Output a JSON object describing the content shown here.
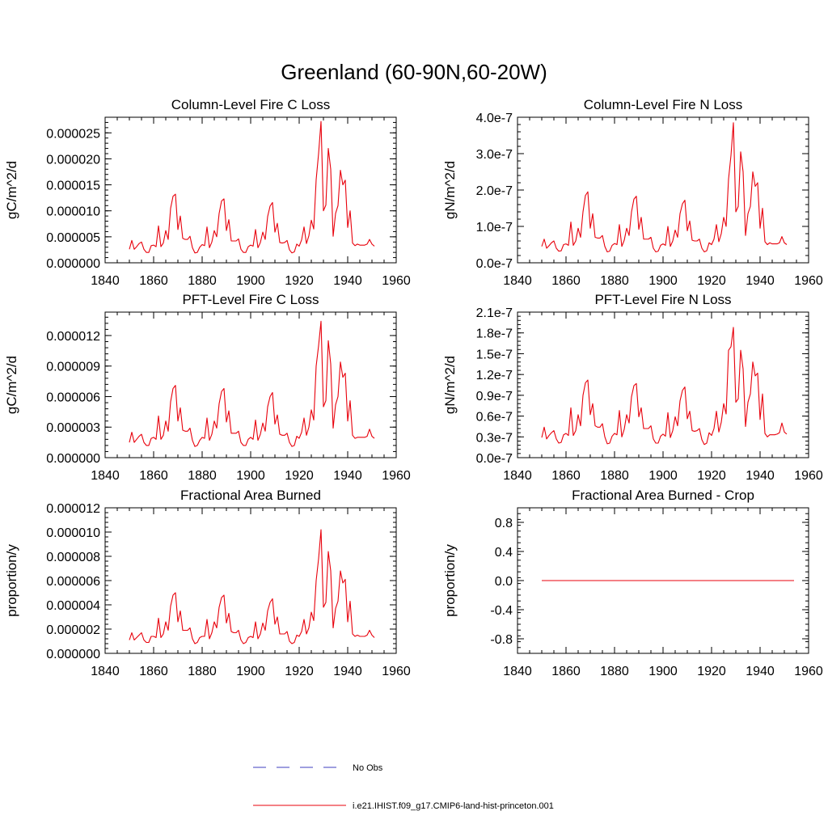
{
  "figure": {
    "title": "Greenland (60-90N,60-20W)"
  },
  "legend": {
    "items": [
      {
        "label": "No Obs",
        "color": "#3f3fbf",
        "dashed": true
      },
      {
        "label": "i.e21.IHIST.f09_g17.CMIP6-land-hist-princeton.001",
        "color": "#e8000b",
        "dashed": false
      }
    ]
  },
  "colors": {
    "series": "#e8000b",
    "axis": "#000000",
    "background": "#ffffff"
  },
  "chart_data": [
    {
      "type": "line",
      "title": "Column-Level Fire C Loss",
      "ylabel": "gC/m^2/d",
      "xlabel": "",
      "xlim": [
        1840,
        1960
      ],
      "ylim": [
        0,
        2.8e-05
      ],
      "xticks": [
        1840,
        1860,
        1880,
        1900,
        1920,
        1940,
        1960
      ],
      "xtick_labels": [
        "1840",
        "1860",
        "1880",
        "1900",
        "1920",
        "1940",
        "1960"
      ],
      "yticks": [
        0,
        5e-06,
        1e-05,
        1.5e-05,
        2e-05,
        2.5e-05
      ],
      "ytick_labels": [
        "0.000000",
        "0.000005",
        "0.000010",
        "0.000015",
        "0.000020",
        "0.000025"
      ],
      "x_start": 1850,
      "x_step": 1,
      "series": [
        {
          "color": "#e8000b",
          "values": [
            2.6e-06,
            4.3e-06,
            2.6e-06,
            3.1e-06,
            3.7e-06,
            4e-06,
            2.6e-06,
            2e-06,
            2e-06,
            3.3e-06,
            3.4e-06,
            3.1e-06,
            7.1e-06,
            3.1e-06,
            3.8e-06,
            6.2e-06,
            4.5e-06,
            1.05e-05,
            1.28e-05,
            1.32e-05,
            6.4e-06,
            9e-06,
            4.7e-06,
            4.5e-06,
            4.5e-06,
            5.1e-06,
            2.9e-06,
            1.9e-06,
            2e-06,
            3e-06,
            3.5e-06,
            3.3e-06,
            6.9e-06,
            2.9e-06,
            4e-06,
            6.2e-06,
            5e-06,
            9.5e-06,
            1.19e-05,
            1.23e-05,
            6.2e-06,
            8.3e-06,
            4.2e-06,
            4.2e-06,
            4.2e-06,
            4.6e-06,
            2.6e-06,
            2e-06,
            2e-06,
            3.1e-06,
            3.4e-06,
            3.2e-06,
            6.4e-06,
            2.9e-06,
            3.9e-06,
            5.9e-06,
            4.5e-06,
            8.9e-06,
            1.09e-05,
            1.16e-05,
            5.9e-06,
            7.6e-06,
            3.9e-06,
            3.8e-06,
            3.9e-06,
            4.3e-06,
            2.5e-06,
            1.9e-06,
            2.1e-06,
            3.6e-06,
            3.2e-06,
            4.4e-06,
            6.9e-06,
            3.7e-06,
            5.2e-06,
            8.2e-06,
            6.5e-06,
            1.6e-05,
            2.1e-05,
            2.72e-05,
            1e-05,
            1.11e-05,
            2.2e-05,
            1.8e-05,
            5.1e-06,
            9.5e-06,
            1.1e-05,
            1.78e-05,
            1.5e-05,
            1.59e-05,
            6.8e-06,
            1e-05,
            3.8e-06,
            3.3e-06,
            3.6e-06,
            3.4e-06,
            3.4e-06,
            3.4e-06,
            3.6e-06,
            4.5e-06,
            3.6e-06,
            3.2e-06
          ]
        }
      ]
    },
    {
      "type": "line",
      "title": "Column-Level Fire N Loss",
      "ylabel": "gN/m^2/d",
      "xlabel": "",
      "xlim": [
        1840,
        1960
      ],
      "ylim": [
        0,
        4e-07
      ],
      "xticks": [
        1840,
        1860,
        1880,
        1900,
        1920,
        1940,
        1960
      ],
      "xtick_labels": [
        "1840",
        "1860",
        "1880",
        "1900",
        "1920",
        "1940",
        "1960"
      ],
      "yticks": [
        0,
        1e-07,
        2e-07,
        3e-07,
        4e-07
      ],
      "ytick_labels": [
        "0.0e-7",
        "1.0e-7",
        "2.0e-7",
        "3.0e-7",
        "4.0e-7"
      ],
      "x_start": 1850,
      "x_step": 1,
      "series": [
        {
          "color": "#e8000b",
          "values": [
            4.5e-08,
            6.5e-08,
            4e-08,
            4.7e-08,
            5.5e-08,
            6e-08,
            4e-08,
            3.2e-08,
            3.3e-08,
            5e-08,
            5.2e-08,
            4.8e-08,
            1.12e-07,
            4.8e-08,
            6e-08,
            9.5e-08,
            7e-08,
            1.4e-07,
            1.85e-07,
            1.95e-07,
            9.5e-08,
            1.35e-07,
            7e-08,
            6.8e-08,
            6.8e-08,
            7.5e-08,
            4.5e-08,
            3e-08,
            3.2e-08,
            4.8e-08,
            5.3e-08,
            5e-08,
            1.05e-07,
            4.5e-08,
            6.2e-08,
            9.5e-08,
            7.5e-08,
            1.4e-07,
            1.75e-07,
            1.83e-07,
            9.2e-08,
            1.25e-07,
            6.5e-08,
            6.5e-08,
            6.5e-08,
            7e-08,
            4e-08,
            3e-08,
            3.2e-08,
            4.8e-08,
            5.2e-08,
            4.8e-08,
            1e-07,
            4.5e-08,
            6e-08,
            9e-08,
            7e-08,
            1.35e-07,
            1.62e-07,
            1.72e-07,
            8.8e-08,
            1.15e-07,
            6.2e-08,
            6e-08,
            6e-08,
            6.5e-08,
            4e-08,
            3e-08,
            3.3e-08,
            5.5e-08,
            5e-08,
            6.5e-08,
            1.05e-07,
            5.8e-08,
            8e-08,
            1.25e-07,
            1e-07,
            2.3e-07,
            2.95e-07,
            3.85e-07,
            1.4e-07,
            1.55e-07,
            3.05e-07,
            2.5e-07,
            7.5e-08,
            1.35e-07,
            1.55e-07,
            2.5e-07,
            2.1e-07,
            2.2e-07,
            9.5e-08,
            1.5e-07,
            5.8e-08,
            5e-08,
            5.5e-08,
            5.2e-08,
            5.2e-08,
            5.2e-08,
            5.5e-08,
            7.2e-08,
            5.5e-08,
            5e-08
          ]
        }
      ]
    },
    {
      "type": "line",
      "title": "PFT-Level Fire C Loss",
      "ylabel": "gC/m^2/d",
      "xlabel": "",
      "xlim": [
        1840,
        1960
      ],
      "ylim": [
        0,
        1.43e-05
      ],
      "xticks": [
        1840,
        1860,
        1880,
        1900,
        1920,
        1940,
        1960
      ],
      "xtick_labels": [
        "1840",
        "1860",
        "1880",
        "1900",
        "1920",
        "1940",
        "1960"
      ],
      "yticks": [
        0,
        3e-06,
        6e-06,
        9e-06,
        1.2e-05
      ],
      "ytick_labels": [
        "0.000000",
        "0.000003",
        "0.000006",
        "0.000009",
        "0.000012"
      ],
      "x_start": 1850,
      "x_step": 1,
      "series": [
        {
          "color": "#e8000b",
          "values": [
            1.5e-06,
            2.5e-06,
            1.5e-06,
            1.8e-06,
            2.1e-06,
            2.3e-06,
            1.5e-06,
            1.2e-06,
            1.2e-06,
            1.9e-06,
            2e-06,
            1.8e-06,
            4.1e-06,
            1.8e-06,
            2.2e-06,
            3.6e-06,
            2.6e-06,
            5.5e-06,
            6.8e-06,
            7.1e-06,
            3.6e-06,
            4.9e-06,
            2.7e-06,
            2.6e-06,
            2.6e-06,
            2.9e-06,
            1.7e-06,
            1.1e-06,
            1.2e-06,
            1.7e-06,
            2e-06,
            1.9e-06,
            3.9e-06,
            1.7e-06,
            2.3e-06,
            3.6e-06,
            2.9e-06,
            5.3e-06,
            6.5e-06,
            6.8e-06,
            3.5e-06,
            4.6e-06,
            2.4e-06,
            2.4e-06,
            2.4e-06,
            2.6e-06,
            1.5e-06,
            1.2e-06,
            1.2e-06,
            1.8e-06,
            2e-06,
            1.8e-06,
            3.7e-06,
            1.7e-06,
            2.3e-06,
            3.4e-06,
            2.6e-06,
            5e-06,
            6e-06,
            6.4e-06,
            3.3e-06,
            4.2e-06,
            2.3e-06,
            2.2e-06,
            2.2e-06,
            2.4e-06,
            1.5e-06,
            1.1e-06,
            1.2e-06,
            2.1e-06,
            1.9e-06,
            2.5e-06,
            3.9e-06,
            2.2e-06,
            3e-06,
            4.7e-06,
            3.7e-06,
            9e-06,
            1.1e-05,
            1.34e-05,
            5e-06,
            5.6e-06,
            1.15e-05,
            9.2e-06,
            2.9e-06,
            5.2e-06,
            6e-06,
            9.4e-06,
            7.9e-06,
            8.3e-06,
            3.6e-06,
            5.6e-06,
            2.2e-06,
            1.9e-06,
            2e-06,
            2e-06,
            2e-06,
            2e-06,
            2.1e-06,
            2.8e-06,
            2.1e-06,
            1.9e-06
          ]
        }
      ]
    },
    {
      "type": "line",
      "title": "PFT-Level Fire N Loss",
      "ylabel": "gN/m^2/d",
      "xlabel": "",
      "xlim": [
        1840,
        1960
      ],
      "ylim": [
        0,
        2.1e-07
      ],
      "xticks": [
        1840,
        1860,
        1880,
        1900,
        1920,
        1940,
        1960
      ],
      "xtick_labels": [
        "1840",
        "1860",
        "1880",
        "1900",
        "1920",
        "1940",
        "1960"
      ],
      "yticks": [
        0,
        3e-08,
        6e-08,
        9e-08,
        1.2e-07,
        1.5e-07,
        1.8e-07,
        2.1e-07
      ],
      "ytick_labels": [
        "0.0e-7",
        "0.3e-7",
        "0.6e-7",
        "0.9e-7",
        "1.2e-7",
        "1.5e-7",
        "1.8e-7",
        "2.1e-7"
      ],
      "x_start": 1850,
      "x_step": 1,
      "series": [
        {
          "color": "#e8000b",
          "values": [
            2.9e-08,
            4.4e-08,
            2.7e-08,
            3.2e-08,
            3.6e-08,
            3.9e-08,
            2.7e-08,
            2.1e-08,
            2.2e-08,
            3.3e-08,
            3.5e-08,
            3.2e-08,
            7.2e-08,
            3.2e-08,
            3.9e-08,
            6.2e-08,
            4.6e-08,
            9e-08,
            1.08e-07,
            1.12e-07,
            6.2e-08,
            7.8e-08,
            4.6e-08,
            4.4e-08,
            4.4e-08,
            4.9e-08,
            3e-08,
            2e-08,
            2.1e-08,
            3.1e-08,
            3.5e-08,
            3.3e-08,
            6.8e-08,
            3e-08,
            4.1e-08,
            6.2e-08,
            5e-08,
            8.8e-08,
            1.04e-07,
            1.07e-07,
            5.9e-08,
            7.2e-08,
            4.2e-08,
            4.2e-08,
            4.2e-08,
            4.6e-08,
            2.7e-08,
            2.1e-08,
            2.1e-08,
            3.1e-08,
            3.4e-08,
            3.1e-08,
            6.5e-08,
            2.9e-08,
            3.9e-08,
            5.9e-08,
            4.6e-08,
            8.2e-08,
            9.7e-08,
            1.02e-07,
            5.6e-08,
            6.7e-08,
            3.9e-08,
            3.8e-08,
            3.9e-08,
            4.2e-08,
            2.6e-08,
            1.9e-08,
            2.1e-08,
            3.6e-08,
            3.2e-08,
            4.2e-08,
            6.7e-08,
            3.7e-08,
            5.1e-08,
            7.8e-08,
            6.3e-08,
            1.55e-07,
            1.6e-07,
            1.88e-07,
            8e-08,
            8.5e-08,
            1.55e-07,
            1.28e-07,
            4.5e-08,
            8e-08,
            9.2e-08,
            1.38e-07,
            1.18e-07,
            1.22e-07,
            5.5e-08,
            9.2e-08,
            3.5e-08,
            3e-08,
            3.3e-08,
            3.3e-08,
            3.3e-08,
            3.4e-08,
            3.6e-08,
            5e-08,
            3.7e-08,
            3.4e-08
          ]
        }
      ]
    },
    {
      "type": "line",
      "title": "Fractional Area Burned",
      "ylabel": "proportion/y",
      "xlabel": "",
      "xlim": [
        1840,
        1960
      ],
      "ylim": [
        0,
        1.2e-05
      ],
      "xticks": [
        1840,
        1860,
        1880,
        1900,
        1920,
        1940,
        1960
      ],
      "xtick_labels": [
        "1840",
        "1860",
        "1880",
        "1900",
        "1920",
        "1940",
        "1960"
      ],
      "yticks": [
        0,
        2e-06,
        4e-06,
        6e-06,
        8e-06,
        1e-05,
        1.2e-05
      ],
      "ytick_labels": [
        "0.000000",
        "0.000002",
        "0.000004",
        "0.000006",
        "0.000008",
        "0.000010",
        "0.000012"
      ],
      "x_start": 1850,
      "x_step": 1,
      "series": [
        {
          "color": "#e8000b",
          "values": [
            1.1e-06,
            1.7e-06,
            1.1e-06,
            1.3e-06,
            1.5e-06,
            1.7e-06,
            1.1e-06,
            9e-07,
            9e-07,
            1.4e-06,
            1.4e-06,
            1.3e-06,
            2.9e-06,
            1.3e-06,
            1.6e-06,
            2.6e-06,
            1.9e-06,
            3.9e-06,
            4.8e-06,
            5e-06,
            2.6e-06,
            3.5e-06,
            1.9e-06,
            1.9e-06,
            1.9e-06,
            2.1e-06,
            1.2e-06,
            8e-07,
            9e-07,
            1.3e-06,
            1.4e-06,
            1.4e-06,
            2.8e-06,
            1.2e-06,
            1.7e-06,
            2.6e-06,
            2.1e-06,
            3.8e-06,
            4.6e-06,
            4.8e-06,
            2.5e-06,
            3.3e-06,
            1.8e-06,
            1.7e-06,
            1.7e-06,
            1.9e-06,
            1.1e-06,
            8e-07,
            9e-07,
            1.3e-06,
            1.4e-06,
            1.3e-06,
            2.6e-06,
            1.2e-06,
            1.6e-06,
            2.5e-06,
            1.9e-06,
            3.5e-06,
            4.2e-06,
            4.5e-06,
            2.4e-06,
            3e-06,
            1.6e-06,
            1.6e-06,
            1.6e-06,
            1.8e-06,
            1e-06,
            8e-07,
            9e-07,
            1.5e-06,
            1.4e-06,
            1.8e-06,
            2.8e-06,
            1.6e-06,
            2.1e-06,
            3.4e-06,
            2.7e-06,
            6e-06,
            7.8e-06,
            1.02e-05,
            3.8e-06,
            4.2e-06,
            8.4e-06,
            6.8e-06,
            2.1e-06,
            3.7e-06,
            4.3e-06,
            6.8e-06,
            5.8e-06,
            6.1e-06,
            2.6e-06,
            4.3e-06,
            1.6e-06,
            1.4e-06,
            1.5e-06,
            1.4e-06,
            1.4e-06,
            1.4e-06,
            1.5e-06,
            1.9e-06,
            1.5e-06,
            1.3e-06
          ]
        }
      ]
    },
    {
      "type": "line",
      "title": "Fractional Area Burned - Crop",
      "ylabel": "proportion/y",
      "xlabel": "",
      "xlim": [
        1840,
        1960
      ],
      "ylim": [
        -1.0,
        1.0
      ],
      "xticks": [
        1840,
        1860,
        1880,
        1900,
        1920,
        1940,
        1960
      ],
      "xtick_labels": [
        "1840",
        "1860",
        "1880",
        "1900",
        "1920",
        "1940",
        "1960"
      ],
      "yticks": [
        -0.8,
        -0.4,
        0.0,
        0.4,
        0.8
      ],
      "ytick_labels": [
        "-0.8",
        "-0.4",
        "0.0",
        "0.4",
        "0.8"
      ],
      "x_start": 1850,
      "x_step": 1,
      "series": [
        {
          "color": "#e8000b",
          "values": [
            0,
            0,
            0,
            0,
            0,
            0,
            0,
            0,
            0,
            0,
            0,
            0,
            0,
            0,
            0,
            0,
            0,
            0,
            0,
            0,
            0,
            0,
            0,
            0,
            0,
            0,
            0,
            0,
            0,
            0,
            0,
            0,
            0,
            0,
            0,
            0,
            0,
            0,
            0,
            0,
            0,
            0,
            0,
            0,
            0,
            0,
            0,
            0,
            0,
            0,
            0,
            0,
            0,
            0,
            0,
            0,
            0,
            0,
            0,
            0,
            0,
            0,
            0,
            0,
            0,
            0,
            0,
            0,
            0,
            0,
            0,
            0,
            0,
            0,
            0,
            0,
            0,
            0,
            0,
            0,
            0,
            0,
            0,
            0,
            0,
            0,
            0,
            0,
            0,
            0,
            0,
            0,
            0,
            0,
            0,
            0,
            0,
            0,
            0,
            0,
            0,
            0,
            0,
            0,
            0
          ]
        }
      ]
    }
  ]
}
